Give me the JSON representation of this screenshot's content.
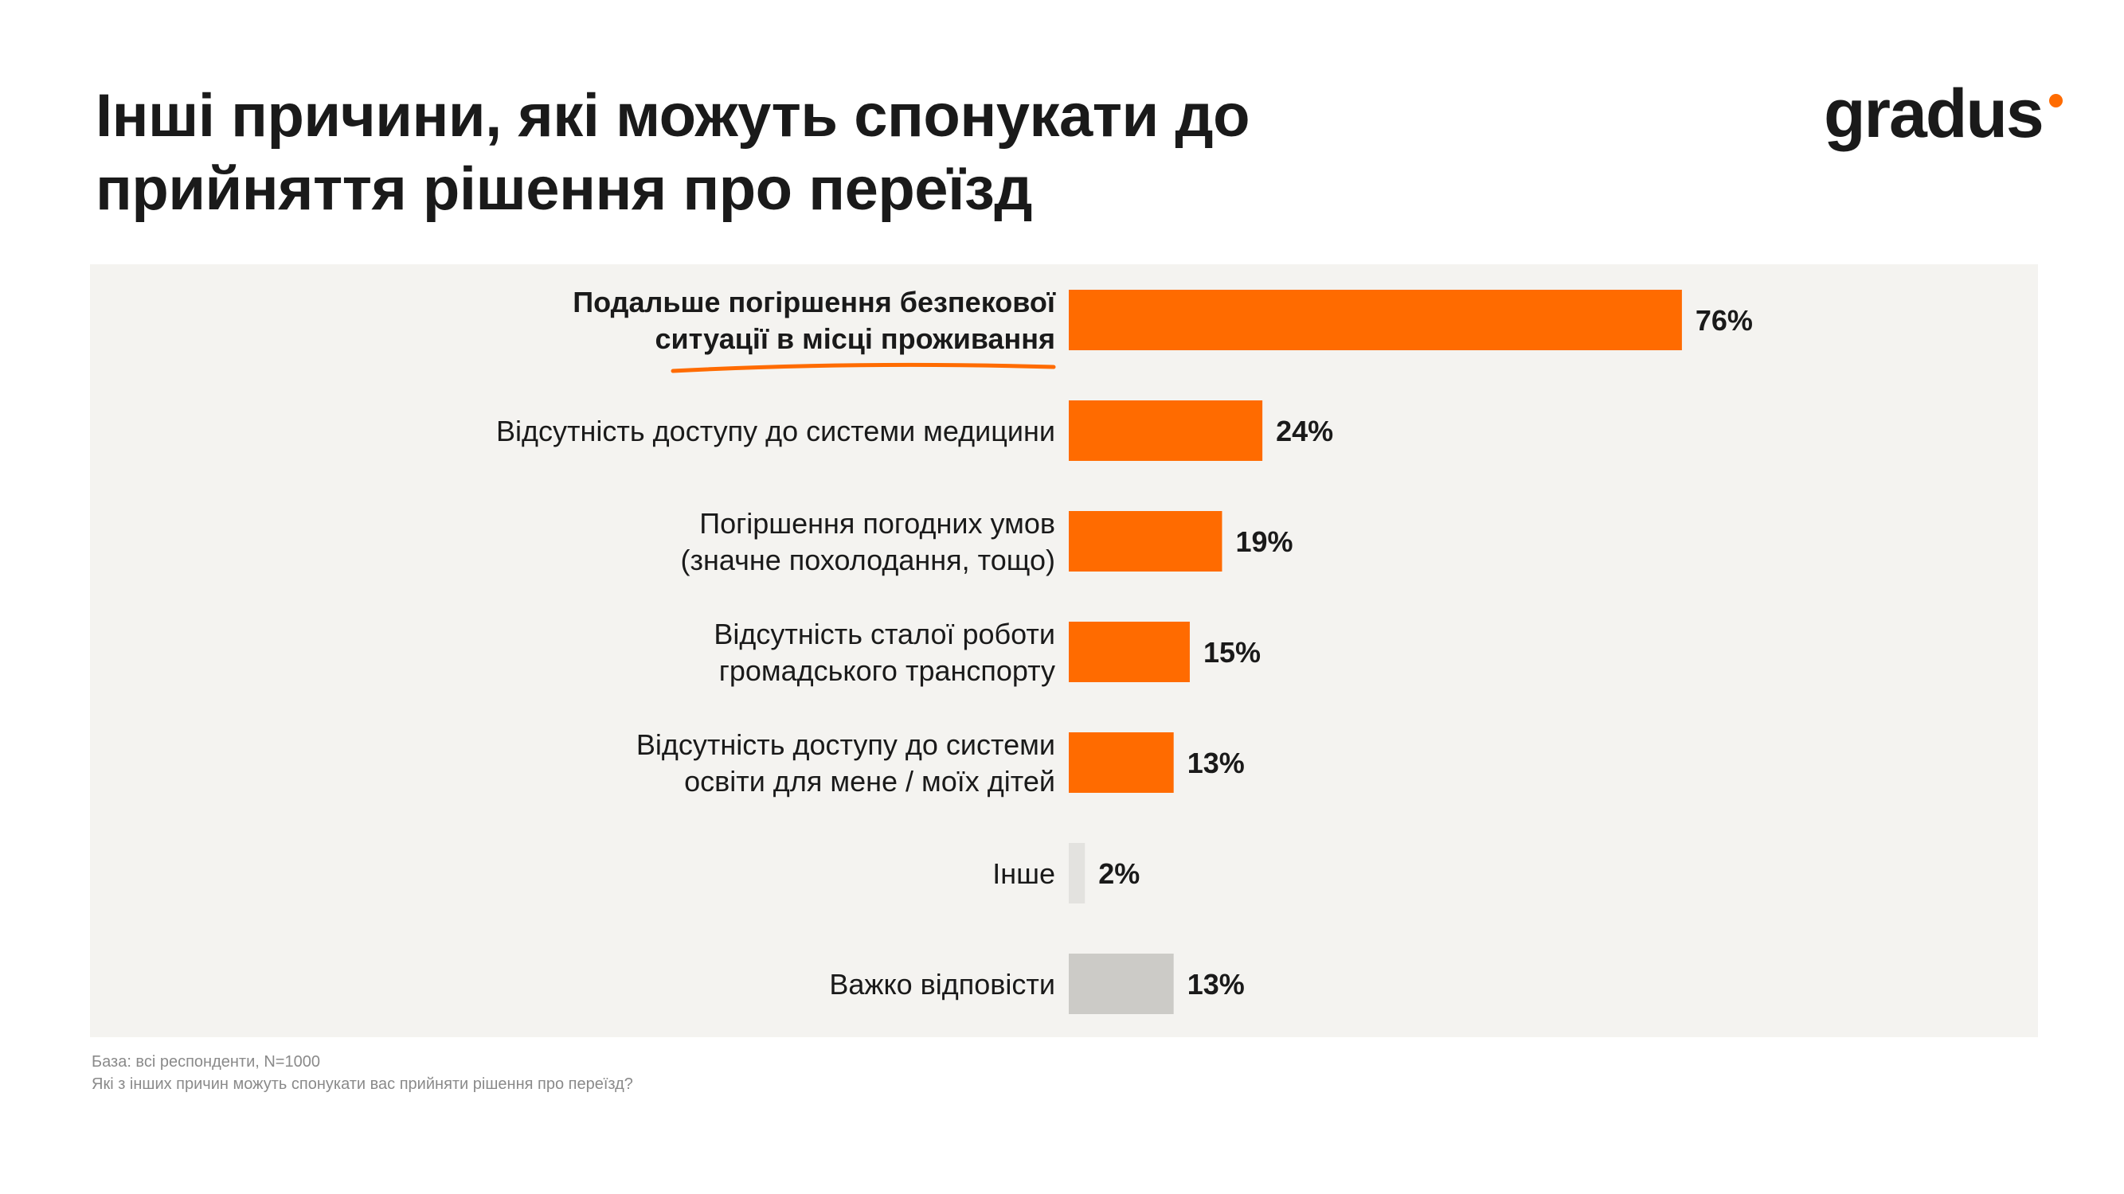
{
  "title_lines": [
    "Інші причини, які можуть спонукати до",
    "прийняття рішення про переїзд"
  ],
  "logo_text": "gradus",
  "colors": {
    "accent": "#ff6b00",
    "muted_light": "#e3e2df",
    "muted": "#cccbc7",
    "panel": "#f4f3f0"
  },
  "chart_data": {
    "type": "bar",
    "orientation": "horizontal",
    "categories": [
      [
        "Подальше погіршення безпекової",
        "ситуації в місці проживання"
      ],
      [
        "Відсутність доступу до системи медицини"
      ],
      [
        "Погіршення погодних умов",
        "(значне похолодання, тощо)"
      ],
      [
        "Відсутність сталої роботи",
        "громадського транспорту"
      ],
      [
        "Відсутність доступу до системи",
        "освіти для мене / моїх дітей"
      ],
      [
        "Інше"
      ],
      [
        "Важко відповісти"
      ]
    ],
    "values": [
      76,
      24,
      19,
      15,
      13,
      2,
      13
    ],
    "value_labels": [
      "76%",
      "24%",
      "19%",
      "15%",
      "13%",
      "2%",
      "13%"
    ],
    "bar_colors": [
      "#ff6b00",
      "#ff6b00",
      "#ff6b00",
      "#ff6b00",
      "#ff6b00",
      "#e3e2df",
      "#cccbc7"
    ],
    "highlighted_index": 0,
    "unit": "%",
    "xlim": [
      0,
      100
    ],
    "grid": false,
    "legend": "none"
  },
  "footnotes": [
    "База: всі респонденти, N=1000",
    "Які з інших причин можуть спонукати вас прийняти рішення про переїзд?"
  ]
}
